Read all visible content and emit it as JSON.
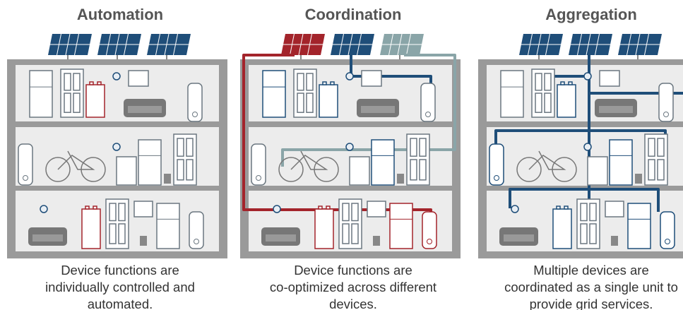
{
  "panels": [
    {
      "title": "Automation",
      "caption": [
        "Device functions are",
        "individually controlled and",
        "automated."
      ]
    },
    {
      "title": "Coordination",
      "caption": [
        "Device functions are",
        "co-optimized across different",
        "devices."
      ]
    },
    {
      "title": "Aggregation",
      "caption": [
        "Multiple devices are",
        "coordinated as a single unit to",
        "provide grid services."
      ]
    }
  ]
}
